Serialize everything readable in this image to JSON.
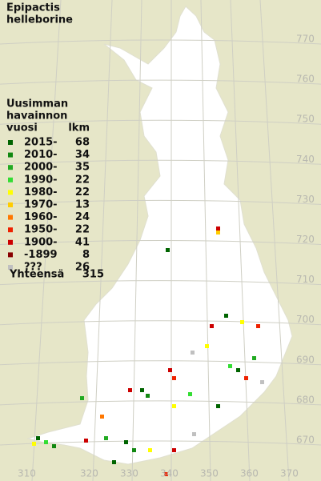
{
  "title": [
    "Epipactis",
    "helleborine"
  ],
  "legend": {
    "heading": [
      "Uusimman",
      "havainnon"
    ],
    "year_header": "vuosi",
    "count_header": "lkm",
    "rows": [
      {
        "label": "2015-",
        "count": "68",
        "color": "#006400"
      },
      {
        "label": "2010-",
        "count": "34",
        "color": "#118811"
      },
      {
        "label": "2000-",
        "count": "35",
        "color": "#22aa22"
      },
      {
        "label": "1990-",
        "count": "22",
        "color": "#33dd33"
      },
      {
        "label": "1980-",
        "count": "22",
        "color": "#ffff00"
      },
      {
        "label": "1970-",
        "count": "13",
        "color": "#ffcc00"
      },
      {
        "label": "1960-",
        "count": "24",
        "color": "#ff7700"
      },
      {
        "label": "1950-",
        "count": "22",
        "color": "#ee2200"
      },
      {
        "label": "1900-",
        "count": "41",
        "color": "#cc0000"
      },
      {
        "label": "-1899",
        "count": "8",
        "color": "#880000"
      },
      {
        "label": "???",
        "count": "26",
        "color": "#c0c0c0"
      }
    ],
    "total_label": "Yhteensä",
    "total_count": "315"
  },
  "grid": {
    "north": [
      770,
      760,
      750,
      740,
      730,
      720,
      710,
      700,
      690,
      680,
      670
    ],
    "east": [
      310,
      320,
      330,
      340,
      350,
      360,
      370
    ]
  }
}
